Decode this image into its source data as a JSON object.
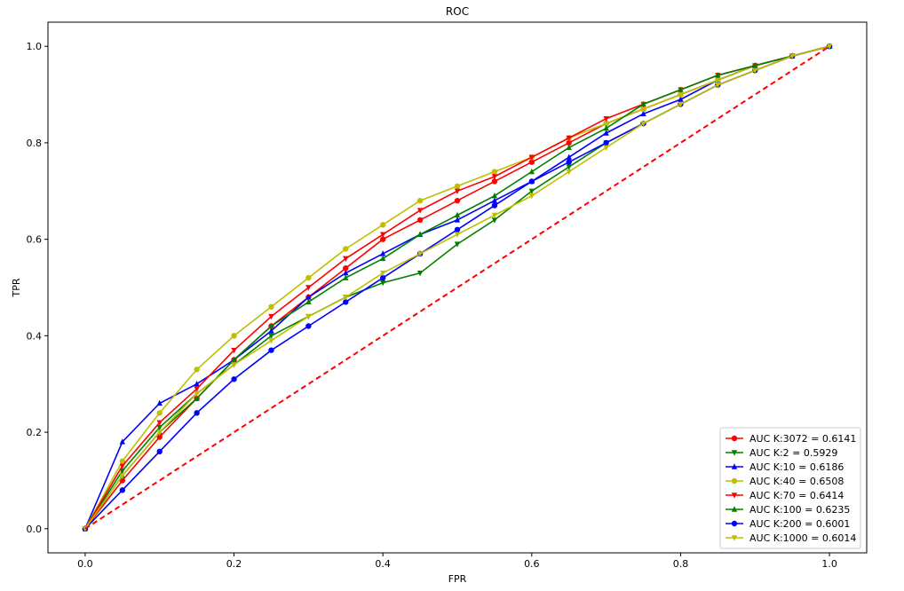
{
  "chart_data": {
    "type": "line",
    "title": "ROC",
    "xlabel": "FPR",
    "ylabel": "TPR",
    "xlim": [
      -0.05,
      1.05
    ],
    "ylim": [
      -0.05,
      1.05
    ],
    "xticks": [
      0.0,
      0.2,
      0.4,
      0.6,
      0.8,
      1.0
    ],
    "xtick_labels": [
      "0.0",
      "0.2",
      "0.4",
      "0.6",
      "0.8",
      "1.0"
    ],
    "yticks": [
      0.0,
      0.2,
      0.4,
      0.6,
      0.8,
      1.0
    ],
    "ytick_labels": [
      "0.0",
      "0.2",
      "0.4",
      "0.6",
      "0.8",
      "1.0"
    ],
    "grid": false,
    "legend_position": "bottom-right",
    "series": [
      {
        "name": "AUC K:3072 = 0.6141",
        "color": "#ff0000",
        "marker": "circle",
        "x": [
          0,
          0.05,
          0.1,
          0.15,
          0.2,
          0.25,
          0.3,
          0.35,
          0.4,
          0.45,
          0.5,
          0.55,
          0.6,
          0.65,
          0.7,
          0.75,
          0.8,
          0.85,
          0.9,
          0.95,
          1.0
        ],
        "y": [
          0,
          0.1,
          0.19,
          0.27,
          0.35,
          0.42,
          0.48,
          0.54,
          0.6,
          0.64,
          0.68,
          0.72,
          0.76,
          0.8,
          0.84,
          0.87,
          0.9,
          0.93,
          0.96,
          0.98,
          1.0
        ]
      },
      {
        "name": "AUC K:2 = 0.5929",
        "color": "#008000",
        "marker": "triangle-down",
        "x": [
          0,
          0.05,
          0.1,
          0.15,
          0.2,
          0.25,
          0.3,
          0.35,
          0.4,
          0.45,
          0.5,
          0.55,
          0.6,
          0.65,
          0.7,
          0.75,
          0.8,
          0.85,
          0.9,
          0.95,
          1.0
        ],
        "y": [
          0,
          0.12,
          0.21,
          0.28,
          0.34,
          0.4,
          0.44,
          0.48,
          0.51,
          0.53,
          0.59,
          0.64,
          0.7,
          0.75,
          0.8,
          0.84,
          0.88,
          0.92,
          0.95,
          0.98,
          1.0
        ]
      },
      {
        "name": "AUC K:10 = 0.6186",
        "color": "#0000ff",
        "marker": "triangle-up",
        "x": [
          0,
          0.05,
          0.1,
          0.15,
          0.2,
          0.25,
          0.3,
          0.35,
          0.4,
          0.45,
          0.5,
          0.55,
          0.6,
          0.65,
          0.7,
          0.75,
          0.8,
          0.85,
          0.9,
          0.95,
          1.0
        ],
        "y": [
          0,
          0.18,
          0.26,
          0.3,
          0.35,
          0.41,
          0.48,
          0.53,
          0.57,
          0.61,
          0.64,
          0.68,
          0.72,
          0.77,
          0.82,
          0.86,
          0.89,
          0.93,
          0.96,
          0.98,
          1.0
        ]
      },
      {
        "name": "AUC K:40 = 0.6508",
        "color": "#bfbf00",
        "marker": "circle",
        "x": [
          0,
          0.05,
          0.1,
          0.15,
          0.2,
          0.25,
          0.3,
          0.35,
          0.4,
          0.45,
          0.5,
          0.55,
          0.6,
          0.65,
          0.7,
          0.75,
          0.8,
          0.85,
          0.9,
          0.95,
          1.0
        ],
        "y": [
          0,
          0.14,
          0.24,
          0.33,
          0.4,
          0.46,
          0.52,
          0.58,
          0.63,
          0.68,
          0.71,
          0.74,
          0.77,
          0.81,
          0.84,
          0.87,
          0.9,
          0.93,
          0.96,
          0.98,
          1.0
        ]
      },
      {
        "name": "AUC K:70 = 0.6414",
        "color": "#ff0000",
        "marker": "triangle-down",
        "x": [
          0,
          0.05,
          0.1,
          0.15,
          0.2,
          0.25,
          0.3,
          0.35,
          0.4,
          0.45,
          0.5,
          0.55,
          0.6,
          0.65,
          0.7,
          0.75,
          0.8,
          0.85,
          0.9,
          0.95,
          1.0
        ],
        "y": [
          0,
          0.13,
          0.22,
          0.29,
          0.37,
          0.44,
          0.5,
          0.56,
          0.61,
          0.66,
          0.7,
          0.73,
          0.77,
          0.81,
          0.85,
          0.88,
          0.91,
          0.94,
          0.96,
          0.98,
          1.0
        ]
      },
      {
        "name": "AUC K:100 = 0.6235",
        "color": "#008000",
        "marker": "triangle-up",
        "x": [
          0,
          0.05,
          0.1,
          0.15,
          0.2,
          0.25,
          0.3,
          0.35,
          0.4,
          0.45,
          0.5,
          0.55,
          0.6,
          0.65,
          0.7,
          0.75,
          0.8,
          0.85,
          0.9,
          0.95,
          1.0
        ],
        "y": [
          0,
          0.11,
          0.2,
          0.27,
          0.35,
          0.42,
          0.47,
          0.52,
          0.56,
          0.61,
          0.65,
          0.69,
          0.74,
          0.79,
          0.83,
          0.88,
          0.91,
          0.94,
          0.96,
          0.98,
          1.0
        ]
      },
      {
        "name": "AUC K:200 = 0.6001",
        "color": "#0000ff",
        "marker": "circle",
        "x": [
          0,
          0.05,
          0.1,
          0.15,
          0.2,
          0.25,
          0.3,
          0.35,
          0.4,
          0.45,
          0.5,
          0.55,
          0.6,
          0.65,
          0.7,
          0.75,
          0.8,
          0.85,
          0.9,
          0.95,
          1.0
        ],
        "y": [
          0,
          0.08,
          0.16,
          0.24,
          0.31,
          0.37,
          0.42,
          0.47,
          0.52,
          0.57,
          0.62,
          0.67,
          0.72,
          0.76,
          0.8,
          0.84,
          0.88,
          0.92,
          0.95,
          0.98,
          1.0
        ]
      },
      {
        "name": "AUC K:1000 = 0.6014",
        "color": "#bfbf00",
        "marker": "triangle-down",
        "x": [
          0,
          0.05,
          0.1,
          0.15,
          0.2,
          0.25,
          0.3,
          0.35,
          0.4,
          0.45,
          0.5,
          0.55,
          0.6,
          0.65,
          0.7,
          0.75,
          0.8,
          0.85,
          0.9,
          0.95,
          1.0
        ],
        "y": [
          0,
          0.11,
          0.2,
          0.28,
          0.34,
          0.39,
          0.44,
          0.48,
          0.53,
          0.57,
          0.61,
          0.65,
          0.69,
          0.74,
          0.79,
          0.84,
          0.88,
          0.92,
          0.95,
          0.98,
          1.0
        ]
      }
    ],
    "reference_line": {
      "color": "#ff0000",
      "style": "dashed",
      "x": [
        0,
        1
      ],
      "y": [
        0,
        1
      ]
    }
  }
}
